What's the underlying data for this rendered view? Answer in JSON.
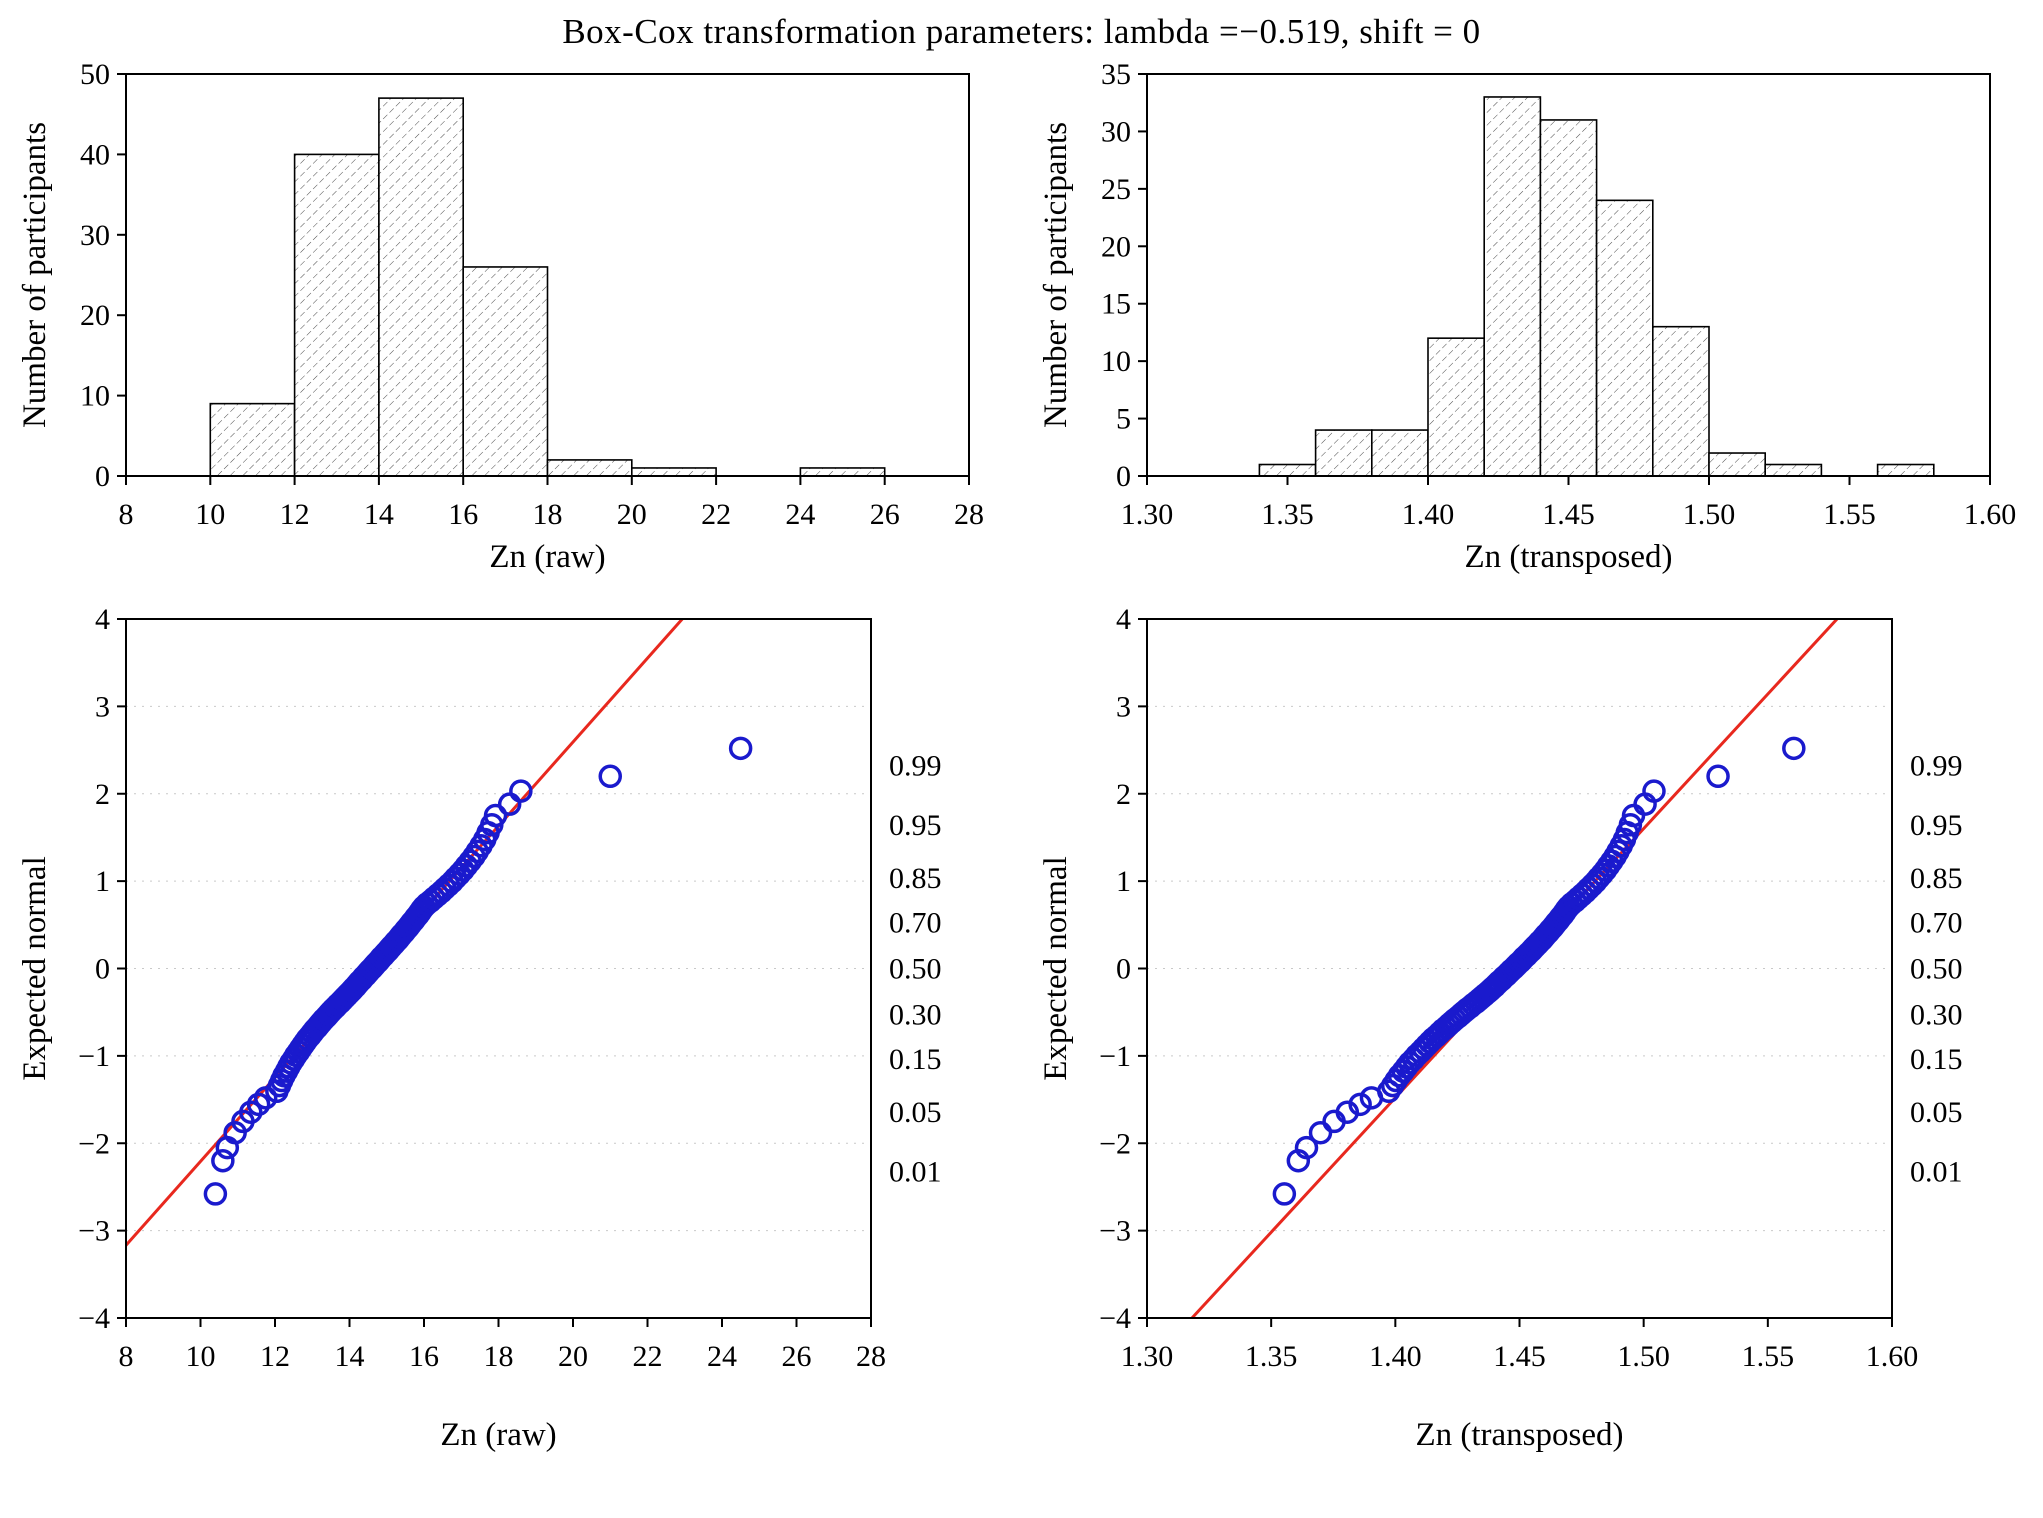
{
  "title": "Box-Cox transformation parameters: lambda =−0.519, shift = 0",
  "colors": {
    "point": "#1a1acd",
    "fit_line": "#e8281e",
    "hatch": "#4a4a4a",
    "axis": "#000000",
    "grid": "#c9c9c9",
    "background": "#ffffff"
  },
  "chart_data": [
    {
      "type": "bar",
      "subtype": "histogram",
      "name": "histogram-zn-raw",
      "xlabel": "Zn (raw)",
      "ylabel": "Number of participants",
      "bin_start": 10,
      "bin_width": 2,
      "counts": [
        9,
        40,
        47,
        26,
        2,
        1,
        0,
        1
      ],
      "xlim": [
        8,
        28
      ],
      "ylim": [
        0,
        50
      ],
      "xticks": [
        8,
        10,
        12,
        14,
        16,
        18,
        20,
        22,
        24,
        26,
        28
      ],
      "xtick_labels": [
        "8",
        "10",
        "12",
        "14",
        "16",
        "18",
        "20",
        "22",
        "24",
        "26",
        "28"
      ],
      "yticks": [
        0,
        10,
        20,
        30,
        40,
        50
      ],
      "ytick_labels": [
        "0",
        "10",
        "20",
        "30",
        "40",
        "50"
      ],
      "grid": "off"
    },
    {
      "type": "bar",
      "subtype": "histogram",
      "name": "histogram-zn-transposed",
      "xlabel": "Zn (transposed)",
      "ylabel": "Number of participants",
      "bin_start": 1.34,
      "bin_width": 0.02,
      "counts": [
        1,
        4,
        4,
        12,
        33,
        31,
        24,
        13,
        2,
        1,
        0,
        1
      ],
      "xlim": [
        1.3,
        1.6
      ],
      "ylim": [
        0,
        35
      ],
      "xticks": [
        1.3,
        1.35,
        1.4,
        1.45,
        1.5,
        1.55,
        1.6
      ],
      "xtick_labels": [
        "1.30",
        "1.35",
        "1.40",
        "1.45",
        "1.50",
        "1.55",
        "1.60"
      ],
      "yticks": [
        0,
        5,
        10,
        15,
        20,
        25,
        30,
        35
      ],
      "ytick_labels": [
        "0",
        "5",
        "10",
        "15",
        "20",
        "25",
        "30",
        "35"
      ],
      "grid": "off"
    },
    {
      "type": "scatter",
      "subtype": "normal-probability-plot",
      "name": "qq-plot-zn-raw",
      "xlabel": "Zn (raw)",
      "ylabel": "Expected normal",
      "xlim": [
        8,
        28
      ],
      "ylim": [
        -4,
        4
      ],
      "xticks": [
        8,
        10,
        12,
        14,
        16,
        18,
        20,
        22,
        24,
        26,
        28
      ],
      "xtick_labels": [
        "8",
        "10",
        "12",
        "14",
        "16",
        "18",
        "20",
        "22",
        "24",
        "26",
        "28"
      ],
      "yticks": [
        4,
        3,
        2,
        1,
        0,
        -1,
        -2,
        -3,
        -4
      ],
      "ytick_labels": [
        "4",
        "3",
        "2",
        "1",
        "0",
        "−1",
        "−2",
        "−3",
        "−4"
      ],
      "grid": "horizontal-dotted",
      "fit_line": {
        "x_at_zero": 14.6,
        "slope": 0.48
      },
      "probability_labels": [
        {
          "label": "0.99",
          "z": 2.326
        },
        {
          "label": "0.95",
          "z": 1.645
        },
        {
          "label": "0.85",
          "z": 1.036
        },
        {
          "label": "0.70",
          "z": 0.524
        },
        {
          "label": "0.50",
          "z": 0.0
        },
        {
          "label": "0.30",
          "z": -0.524
        },
        {
          "label": "0.15",
          "z": -1.036
        },
        {
          "label": "0.05",
          "z": -1.645
        },
        {
          "label": "0.01",
          "z": -2.326
        }
      ],
      "points": [
        [
          10.4,
          -2.58
        ],
        [
          10.6,
          -2.2
        ],
        [
          10.72,
          -2.05
        ],
        [
          10.93,
          -1.88
        ],
        [
          11.14,
          -1.75
        ],
        [
          11.35,
          -1.645
        ],
        [
          11.56,
          -1.555
        ],
        [
          11.75,
          -1.48
        ],
        [
          12.05,
          -1.405
        ],
        [
          12.12,
          -1.34
        ],
        [
          12.18,
          -1.282
        ],
        [
          12.24,
          -1.227
        ],
        [
          12.31,
          -1.175
        ],
        [
          12.37,
          -1.126
        ],
        [
          12.43,
          -1.08
        ],
        [
          12.5,
          -1.036
        ],
        [
          12.56,
          -0.994
        ],
        [
          12.63,
          -0.954
        ],
        [
          12.69,
          -0.915
        ],
        [
          12.75,
          -0.878
        ],
        [
          12.81,
          -0.842
        ],
        [
          12.87,
          -0.806
        ],
        [
          12.94,
          -0.772
        ],
        [
          13.0,
          -0.739
        ],
        [
          13.06,
          -0.706
        ],
        [
          13.13,
          -0.674
        ],
        [
          13.19,
          -0.643
        ],
        [
          13.25,
          -0.613
        ],
        [
          13.31,
          -0.583
        ],
        [
          13.38,
          -0.553
        ],
        [
          13.44,
          -0.524
        ],
        [
          13.5,
          -0.496
        ],
        [
          13.56,
          -0.468
        ],
        [
          13.63,
          -0.44
        ],
        [
          13.69,
          -0.412
        ],
        [
          13.76,
          -0.385
        ],
        [
          13.82,
          -0.358
        ],
        [
          13.88,
          -0.331
        ],
        [
          13.94,
          -0.305
        ],
        [
          14.0,
          -0.279
        ],
        [
          14.06,
          -0.253
        ],
        [
          14.11,
          -0.228
        ],
        [
          14.17,
          -0.202
        ],
        [
          14.22,
          -0.176
        ],
        [
          14.27,
          -0.151
        ],
        [
          14.33,
          -0.126
        ],
        [
          14.38,
          -0.1
        ],
        [
          14.44,
          -0.075
        ],
        [
          14.49,
          -0.05
        ],
        [
          14.54,
          -0.025
        ],
        [
          14.6,
          0
        ],
        [
          14.65,
          0.025
        ],
        [
          14.7,
          0.05
        ],
        [
          14.76,
          0.075
        ],
        [
          14.81,
          0.1
        ],
        [
          14.86,
          0.126
        ],
        [
          14.92,
          0.151
        ],
        [
          14.97,
          0.176
        ],
        [
          15.03,
          0.202
        ],
        [
          15.08,
          0.228
        ],
        [
          15.13,
          0.253
        ],
        [
          15.19,
          0.279
        ],
        [
          15.24,
          0.305
        ],
        [
          15.3,
          0.331
        ],
        [
          15.35,
          0.358
        ],
        [
          15.4,
          0.385
        ],
        [
          15.46,
          0.412
        ],
        [
          15.51,
          0.44
        ],
        [
          15.57,
          0.468
        ],
        [
          15.62,
          0.496
        ],
        [
          15.67,
          0.524
        ],
        [
          15.73,
          0.553
        ],
        [
          15.78,
          0.583
        ],
        [
          15.84,
          0.613
        ],
        [
          15.89,
          0.643
        ],
        [
          15.94,
          0.674
        ],
        [
          16.0,
          0.706
        ],
        [
          16.08,
          0.739
        ],
        [
          16.18,
          0.772
        ],
        [
          16.27,
          0.806
        ],
        [
          16.37,
          0.842
        ],
        [
          16.47,
          0.878
        ],
        [
          16.56,
          0.915
        ],
        [
          16.66,
          0.954
        ],
        [
          16.76,
          0.994
        ],
        [
          16.85,
          1.036
        ],
        [
          16.95,
          1.08
        ],
        [
          17.05,
          1.126
        ],
        [
          17.14,
          1.175
        ],
        [
          17.24,
          1.227
        ],
        [
          17.34,
          1.282
        ],
        [
          17.43,
          1.34
        ],
        [
          17.53,
          1.405
        ],
        [
          17.63,
          1.476
        ],
        [
          17.72,
          1.555
        ],
        [
          17.82,
          1.645
        ],
        [
          17.92,
          1.751
        ],
        [
          18.3,
          1.881
        ],
        [
          18.6,
          2.03
        ],
        [
          21.0,
          2.2
        ],
        [
          24.5,
          2.52
        ]
      ]
    },
    {
      "type": "scatter",
      "subtype": "normal-probability-plot",
      "name": "qq-plot-zn-transposed",
      "xlabel": "Zn (transposed)",
      "ylabel": "Expected normal",
      "xlim": [
        1.3,
        1.6
      ],
      "ylim": [
        -4,
        4
      ],
      "xticks": [
        1.3,
        1.35,
        1.4,
        1.45,
        1.5,
        1.55,
        1.6
      ],
      "xtick_labels": [
        "1.30",
        "1.35",
        "1.40",
        "1.45",
        "1.50",
        "1.55",
        "1.60"
      ],
      "yticks": [
        4,
        3,
        2,
        1,
        0,
        -1,
        -2,
        -3,
        -4
      ],
      "ytick_labels": [
        "4",
        "3",
        "2",
        "1",
        "0",
        "−1",
        "−2",
        "−3",
        "−4"
      ],
      "grid": "horizontal-dotted",
      "fit_line": {
        "x_at_zero": 1.448,
        "slope": 30.8
      },
      "probability_labels": [
        {
          "label": "0.99",
          "z": 2.326
        },
        {
          "label": "0.95",
          "z": 1.645
        },
        {
          "label": "0.85",
          "z": 1.036
        },
        {
          "label": "0.70",
          "z": 0.524
        },
        {
          "label": "0.50",
          "z": 0.0
        },
        {
          "label": "0.30",
          "z": -0.524
        },
        {
          "label": "0.15",
          "z": -1.036
        },
        {
          "label": "0.05",
          "z": -1.645
        },
        {
          "label": "0.01",
          "z": -2.326
        }
      ],
      "points_source": "boxcox_of_raw",
      "lambda": -0.519,
      "shift": 0
    }
  ]
}
